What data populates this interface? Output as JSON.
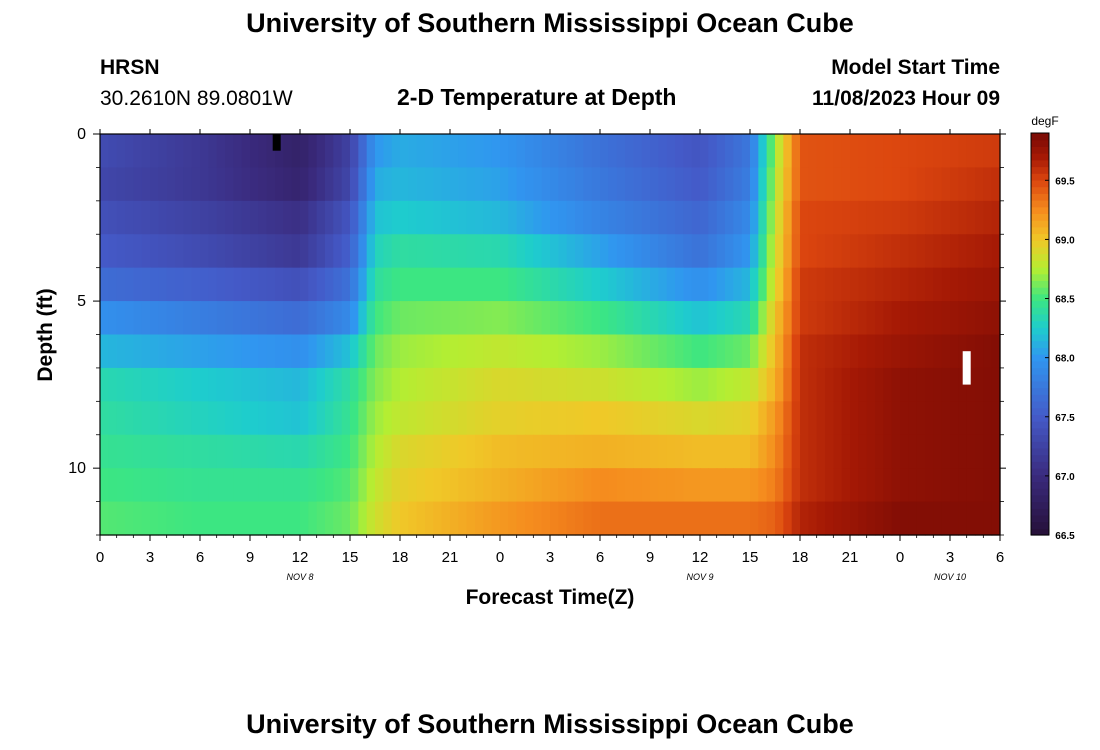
{
  "page": {
    "title": "University of Southern Mississippi Ocean Cube",
    "footer_title": "University of Southern Mississippi Ocean Cube",
    "station": "HRSN",
    "coords": "30.2610N  89.0801W",
    "chart_title": "2-D Temperature at Depth",
    "model_start_label": "Model Start Time",
    "model_start_value": "11/08/2023 Hour 09"
  },
  "chart_data": {
    "type": "heatmap",
    "title": "2-D Temperature at Depth",
    "xlabel": "Forecast Time(Z)",
    "ylabel": "Depth (ft)",
    "x_start_label": "NOV 8 00Z",
    "x_range_hours": [
      0,
      54
    ],
    "xticks": [
      0,
      3,
      6,
      9,
      12,
      15,
      18,
      21,
      24,
      27,
      30,
      33,
      36,
      39,
      42,
      45,
      48,
      51,
      54
    ],
    "xtick_labels": [
      "0",
      "3",
      "6",
      "9",
      "12",
      "15",
      "18",
      "21",
      "0",
      "3",
      "6",
      "9",
      "12",
      "15",
      "18",
      "21",
      "0",
      "3",
      "6"
    ],
    "date_labels": [
      {
        "hour": 12,
        "text": "NOV 8"
      },
      {
        "hour": 36,
        "text": "NOV 9"
      },
      {
        "hour": 51,
        "text": "NOV 10"
      }
    ],
    "depth_range_ft": [
      0,
      12
    ],
    "yticks": [
      0,
      5,
      10
    ],
    "ytick_labels": [
      "0",
      "5",
      "10"
    ],
    "colorbar": {
      "unit": "degF",
      "range": [
        66.5,
        69.9
      ],
      "ticks": [
        66.5,
        67.0,
        67.5,
        68.0,
        68.5,
        69.0,
        69.5
      ],
      "tick_labels": [
        "66.5",
        "67.0",
        "67.5",
        "68.0",
        "68.5",
        "69.0",
        "69.5"
      ]
    },
    "depth_layers_ft": [
      0.5,
      1.5,
      2.5,
      3.5,
      4.5,
      5.5,
      6.5,
      7.5,
      8.5,
      9.5,
      10.5,
      11.5
    ],
    "time_hours": [
      0,
      6,
      12,
      15,
      16.5,
      18,
      24,
      30,
      36,
      39,
      40.5,
      42,
      48,
      54
    ],
    "temperature_degF": [
      [
        67.35,
        67.15,
        66.85,
        67.25,
        68.0,
        68.1,
        68.0,
        67.7,
        67.45,
        67.75,
        68.7,
        69.45,
        69.5,
        69.55
      ],
      [
        67.3,
        67.15,
        66.9,
        67.3,
        68.1,
        68.15,
        68.05,
        67.75,
        67.5,
        67.8,
        68.75,
        69.45,
        69.5,
        69.6
      ],
      [
        67.4,
        67.25,
        67.05,
        67.45,
        68.2,
        68.25,
        68.15,
        67.85,
        67.6,
        67.9,
        68.8,
        69.5,
        69.55,
        69.65
      ],
      [
        67.5,
        67.35,
        67.15,
        67.55,
        68.3,
        68.4,
        68.35,
        68.05,
        67.7,
        68.0,
        68.85,
        69.5,
        69.6,
        69.7
      ],
      [
        67.65,
        67.55,
        67.4,
        67.7,
        68.4,
        68.5,
        68.5,
        68.25,
        67.95,
        68.15,
        68.9,
        69.55,
        69.65,
        69.75
      ],
      [
        67.95,
        67.8,
        67.65,
        67.9,
        68.5,
        68.6,
        68.65,
        68.5,
        68.2,
        68.35,
        69.0,
        69.55,
        69.7,
        69.8
      ],
      [
        68.15,
        68.05,
        67.95,
        68.2,
        68.6,
        68.7,
        68.8,
        68.7,
        68.5,
        68.6,
        69.05,
        69.6,
        69.75,
        69.85
      ],
      [
        68.35,
        68.25,
        68.15,
        68.4,
        68.65,
        68.75,
        68.9,
        68.85,
        68.7,
        68.8,
        69.1,
        69.6,
        69.8,
        69.85
      ],
      [
        68.4,
        68.3,
        68.2,
        68.45,
        68.7,
        68.8,
        68.95,
        69.0,
        68.9,
        68.95,
        69.2,
        69.6,
        69.8,
        69.85
      ],
      [
        68.45,
        68.4,
        68.35,
        68.5,
        68.75,
        68.9,
        69.05,
        69.1,
        69.05,
        69.05,
        69.25,
        69.6,
        69.8,
        69.85
      ],
      [
        68.5,
        68.45,
        68.45,
        68.55,
        68.8,
        68.95,
        69.1,
        69.25,
        69.2,
        69.2,
        69.3,
        69.6,
        69.8,
        69.85
      ],
      [
        68.55,
        68.5,
        68.5,
        68.6,
        68.85,
        69.0,
        69.2,
        69.35,
        69.35,
        69.35,
        69.4,
        69.65,
        69.85,
        69.85
      ]
    ],
    "markers": [
      {
        "hour": 10.6,
        "depth_from": 0,
        "depth_to": 0.5,
        "color": "#000000"
      },
      {
        "hour": 52.0,
        "depth_from": 6.5,
        "depth_to": 7.5,
        "color": "#ffffff"
      }
    ]
  }
}
